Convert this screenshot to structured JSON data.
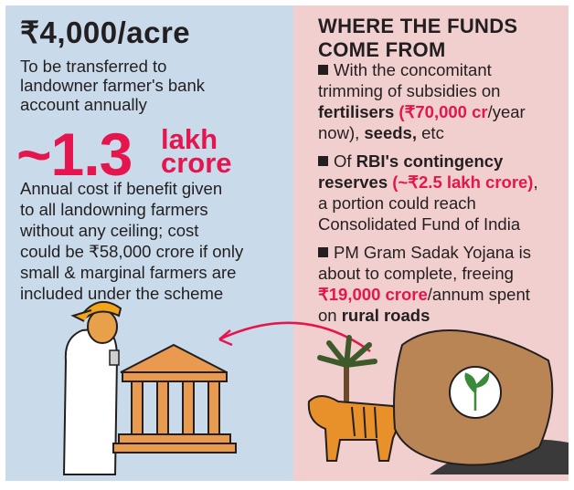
{
  "left": {
    "headline": "₹4,000/acre",
    "headline_desc": [
      "To be transferred to",
      "landowner farmer's bank",
      "account annually"
    ],
    "cost_value": "~1.3",
    "cost_unit": [
      "lakh",
      "crore"
    ],
    "cost_desc": [
      "Annual cost if benefit given",
      "to all landowning farmers",
      "without any ceiling; cost",
      "could be ₹58,000 crore if only",
      "small & marginal farmers are",
      "included under the scheme"
    ]
  },
  "right": {
    "heading": [
      "WHERE THE FUNDS",
      "COME FROM"
    ],
    "item1": {
      "l1": "With the concomitant",
      "l2": "trimming of subsidies on",
      "l3_bold": "fertilisers",
      "l3_red": " (₹70,000 cr",
      "l3_rest": "/year",
      "l4_a": "now), ",
      "l4_bold": "seeds,",
      "l4_rest": " etc"
    },
    "item2": {
      "l1_a": "Of ",
      "l1_bold": "RBI's contingency",
      "l2_bold": "reserves",
      "l2_red": " (~₹2.5 lakh crore)",
      "l2_rest": ",",
      "l3": "a portion could reach",
      "l4": "Consolidated Fund of India"
    },
    "item3": {
      "l1": "PM Gram Sadak Yojana is",
      "l2": "about to complete, freeing",
      "l3_red": "₹19,000 crore",
      "l3_rest": "/annum spent",
      "l4_a": "on ",
      "l4_bold": "rural roads"
    }
  },
  "colors": {
    "left_bg": "#c9dbea",
    "right_bg": "#f2cfcf",
    "accent": "#e5154d"
  },
  "illustrations": [
    "farmer-with-phone",
    "bank-building",
    "arrow",
    "tiger",
    "palm-tree",
    "seed-sack",
    "road"
  ]
}
